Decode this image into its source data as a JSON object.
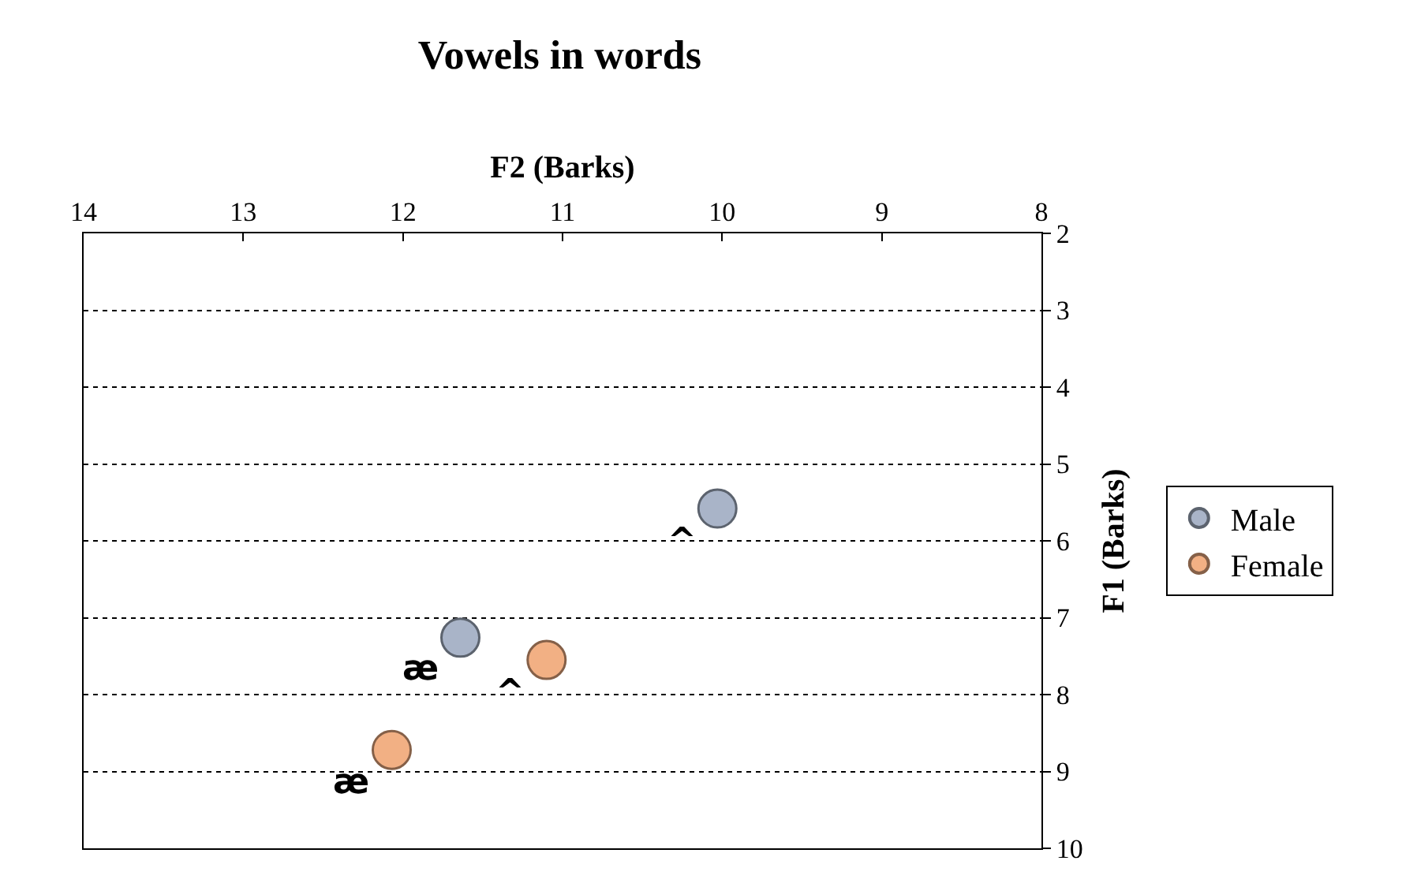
{
  "chart_data": {
    "type": "scatter",
    "title": "Vowels in words",
    "xlabel": "F2 (Barks)",
    "ylabel": "F1 (Barks)",
    "xlim": [
      14,
      8
    ],
    "xticks": [
      14,
      13,
      12,
      11,
      10,
      9,
      8
    ],
    "ylim": [
      10,
      2
    ],
    "yticks": [
      2,
      3,
      4,
      5,
      6,
      7,
      8,
      9,
      10
    ],
    "grid": "y",
    "legend": "right",
    "marker": "circle",
    "series": [
      {
        "name": "Male",
        "color": "#a9b4c8",
        "x": [
          10.03,
          11.64
        ],
        "values": [
          5.58,
          7.26
        ]
      },
      {
        "name": "Female",
        "color": "#f2b084",
        "x": [
          11.1,
          12.07
        ],
        "values": [
          7.55,
          8.72
        ]
      }
    ],
    "annotations": [
      {
        "text": "^",
        "x": 10.03,
        "y": 5.58
      },
      {
        "text": "^",
        "x": 11.1,
        "y": 7.55
      },
      {
        "text": "æ",
        "x": 11.64,
        "y": 7.26
      },
      {
        "text": "æ",
        "x": 12.07,
        "y": 8.72
      }
    ]
  }
}
